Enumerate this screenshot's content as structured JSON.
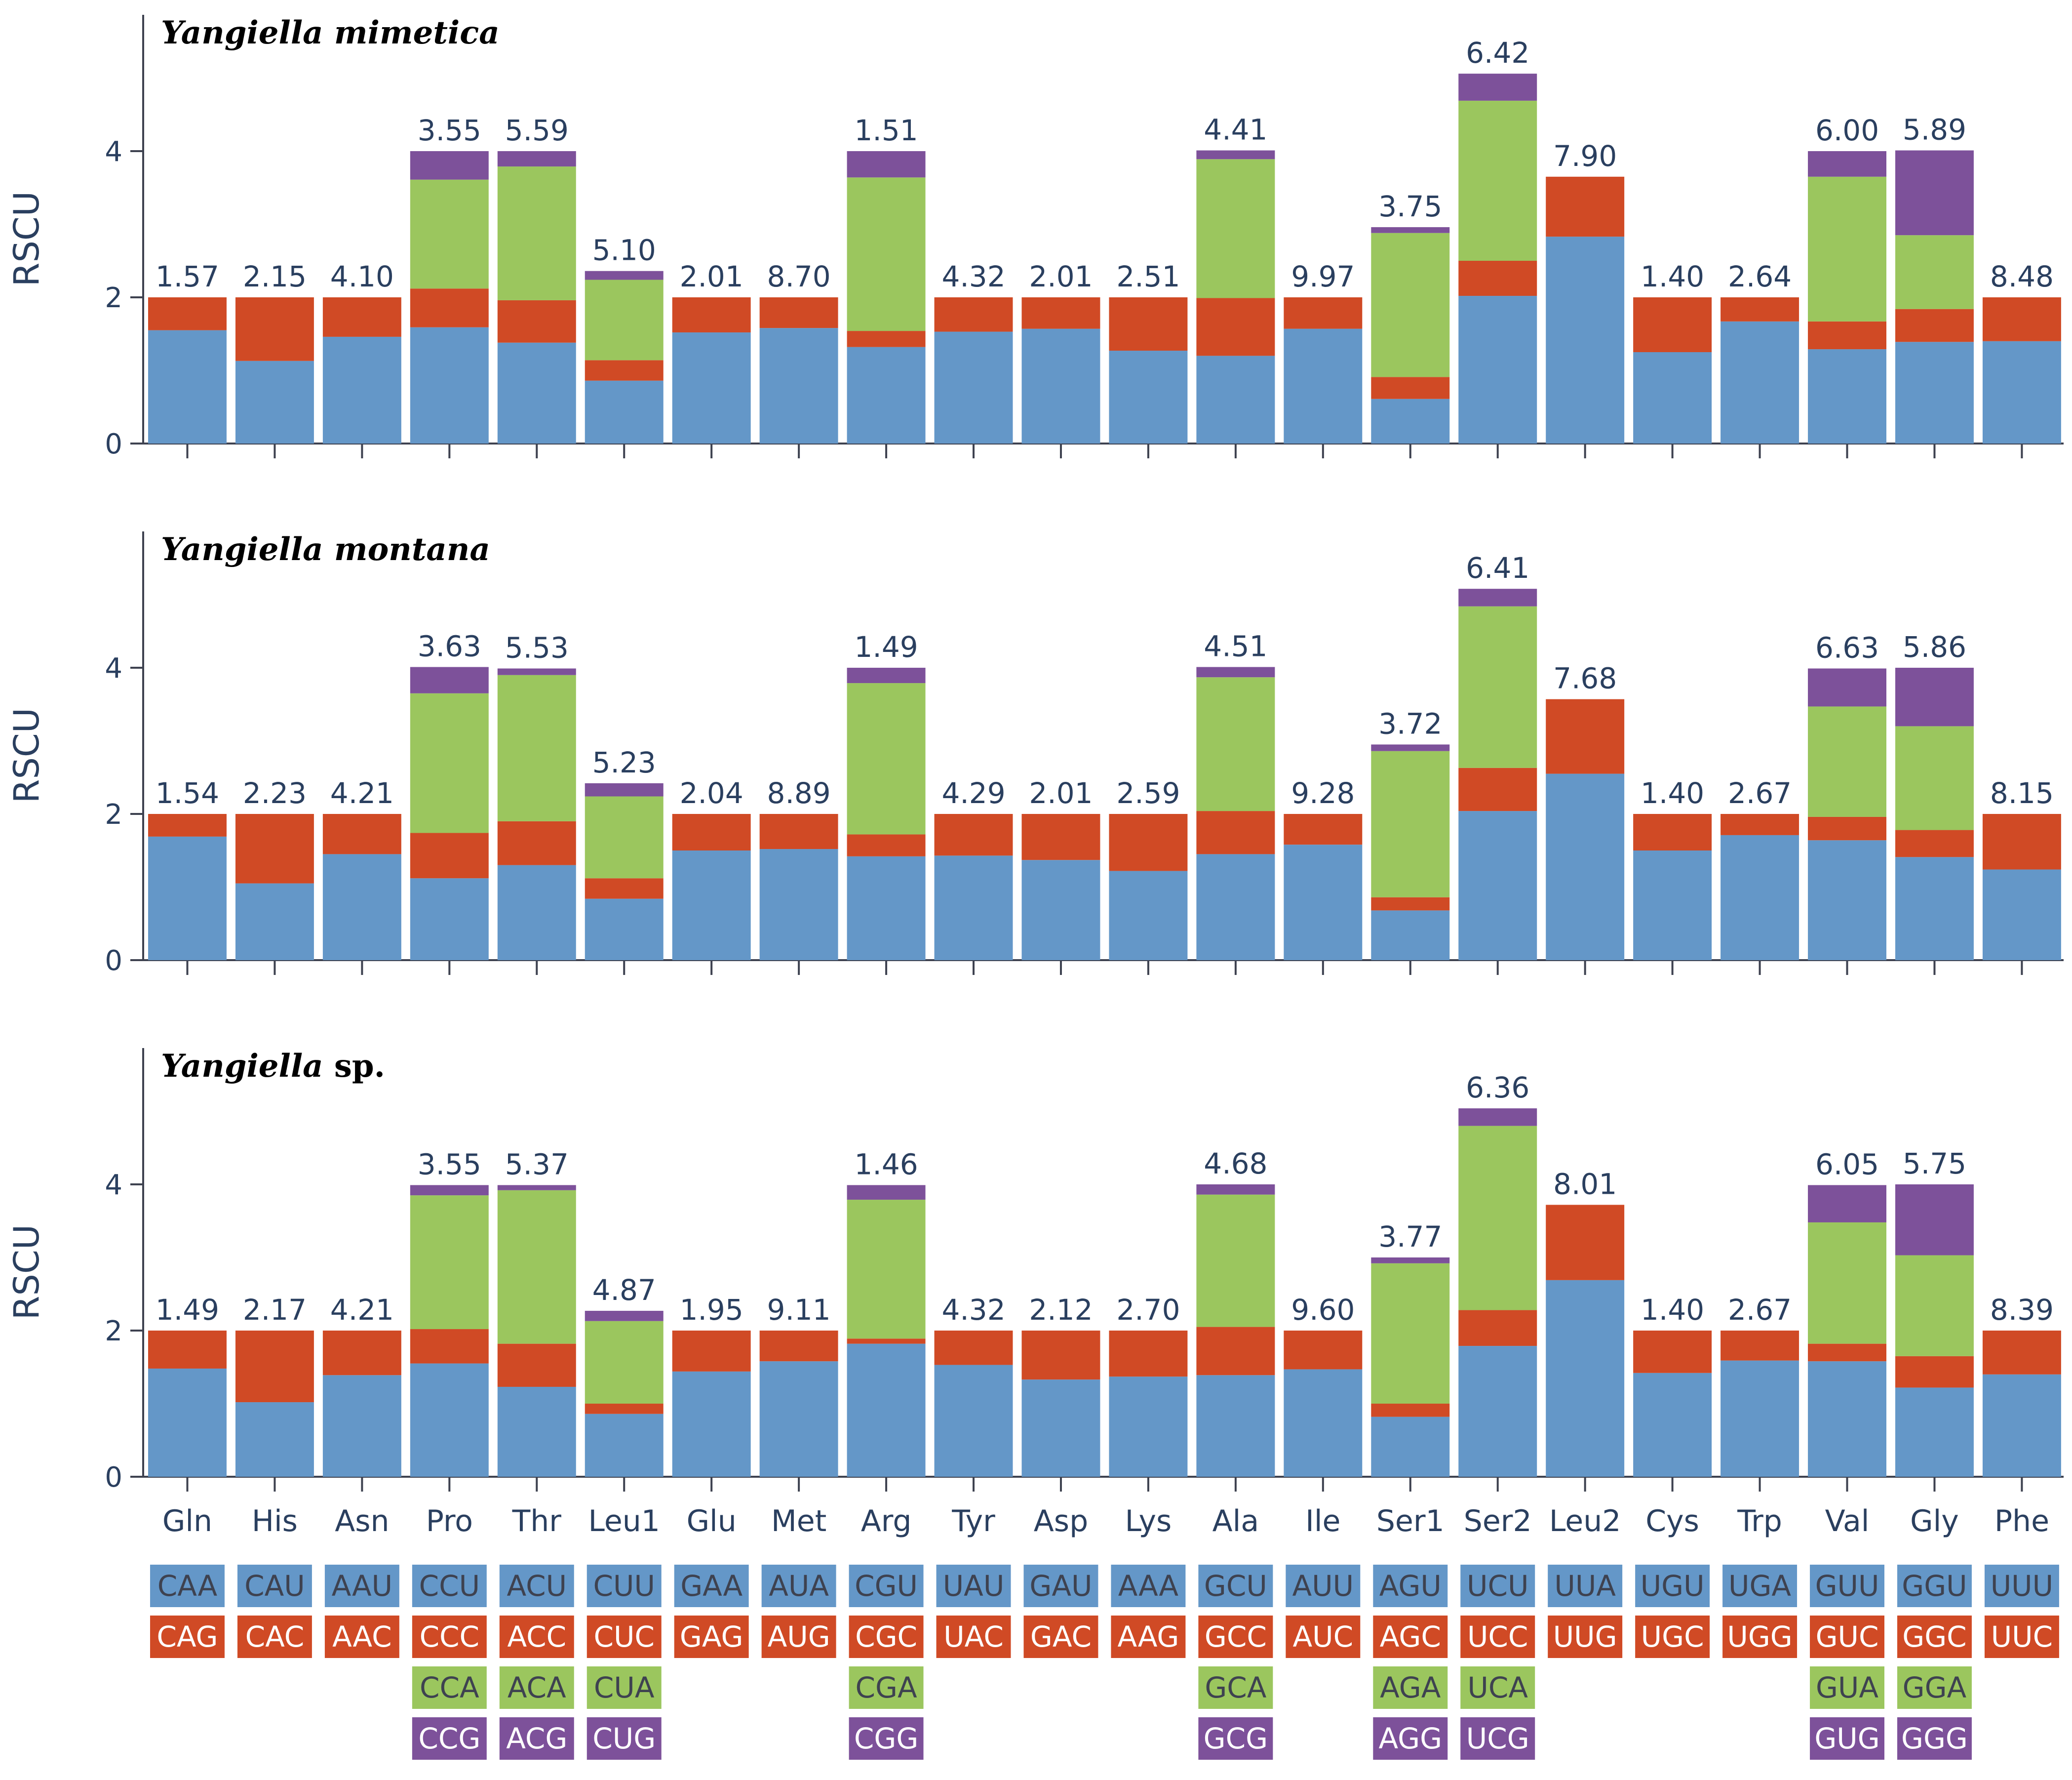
{
  "chart_data": {
    "type": "bar",
    "stacked": true,
    "ylabel": "RSCU",
    "ylim": [
      0,
      5.8
    ],
    "yticks": [
      0,
      2,
      4
    ],
    "colors": [
      "#6497c8",
      "#d04a25",
      "#9bc65e",
      "#7d519a"
    ],
    "codon_text_colors": [
      "#3e4250",
      "#ffffff",
      "#3e4250",
      "#ffffff"
    ],
    "categories": [
      "Gln",
      "His",
      "Asn",
      "Pro",
      "Thr",
      "Leu1",
      "Glu",
      "Met",
      "Arg",
      "Tyr",
      "Asp",
      "Lys",
      "Ala",
      "Ile",
      "Ser1",
      "Ser2",
      "Leu2",
      "Cys",
      "Trp",
      "Val",
      "Gly",
      "Phe"
    ],
    "codons": [
      [
        "CAA",
        "CAG"
      ],
      [
        "CAU",
        "CAC"
      ],
      [
        "AAU",
        "AAC"
      ],
      [
        "CCU",
        "CCC",
        "CCA",
        "CCG"
      ],
      [
        "ACU",
        "ACC",
        "ACA",
        "ACG"
      ],
      [
        "CUU",
        "CUC",
        "CUA",
        "CUG"
      ],
      [
        "GAA",
        "GAG"
      ],
      [
        "AUA",
        "AUG"
      ],
      [
        "CGU",
        "CGC",
        "CGA",
        "CGG"
      ],
      [
        "UAU",
        "UAC"
      ],
      [
        "GAU",
        "GAC"
      ],
      [
        "AAA",
        "AAG"
      ],
      [
        "GCU",
        "GCC",
        "GCA",
        "GCG"
      ],
      [
        "AUU",
        "AUC"
      ],
      [
        "AGU",
        "AGC",
        "AGA",
        "AGG"
      ],
      [
        "UCU",
        "UCC",
        "UCA",
        "UCG"
      ],
      [
        "UUA",
        "UUG"
      ],
      [
        "UGU",
        "UGC"
      ],
      [
        "UGA",
        "UGG"
      ],
      [
        "GUU",
        "GUC",
        "GUA",
        "GUG"
      ],
      [
        "GGU",
        "GGC",
        "GGA",
        "GGG"
      ],
      [
        "UUU",
        "UUC"
      ]
    ],
    "panels": [
      {
        "title": "Yangiella mimetica",
        "title_suffix": "",
        "labels": [
          "1.57",
          "2.15",
          "4.10",
          "3.55",
          "5.59",
          "5.10",
          "2.01",
          "8.70",
          "1.51",
          "4.32",
          "2.01",
          "2.51",
          "4.41",
          "9.97",
          "3.75",
          "6.42",
          "7.90",
          "1.40",
          "2.64",
          "6.00",
          "5.89",
          "8.48"
        ],
        "stacks": [
          [
            1.55,
            0.45
          ],
          [
            1.13,
            0.87
          ],
          [
            1.46,
            0.54
          ],
          [
            1.59,
            0.53,
            1.49,
            0.39
          ],
          [
            1.38,
            0.58,
            1.83,
            0.21
          ],
          [
            0.86,
            0.28,
            1.1,
            0.12
          ],
          [
            1.52,
            0.48
          ],
          [
            1.58,
            0.42
          ],
          [
            1.32,
            0.22,
            2.1,
            0.36
          ],
          [
            1.53,
            0.47
          ],
          [
            1.57,
            0.43
          ],
          [
            1.27,
            0.73
          ],
          [
            1.2,
            0.79,
            1.9,
            0.12
          ],
          [
            1.57,
            0.43
          ],
          [
            0.61,
            0.3,
            1.97,
            0.08
          ],
          [
            2.02,
            0.48,
            2.19,
            0.37
          ],
          [
            2.83,
            0.82
          ],
          [
            1.25,
            0.75
          ],
          [
            1.67,
            0.33
          ],
          [
            1.29,
            0.38,
            1.98,
            0.35
          ],
          [
            1.39,
            0.45,
            1.01,
            1.16
          ],
          [
            1.4,
            0.6
          ]
        ]
      },
      {
        "title": "Yangiella montana",
        "title_suffix": "",
        "labels": [
          "1.54",
          "2.23",
          "4.21",
          "3.63",
          "5.53",
          "5.23",
          "2.04",
          "8.89",
          "1.49",
          "4.29",
          "2.01",
          "2.59",
          "4.51",
          "9.28",
          "3.72",
          "6.41",
          "7.68",
          "1.40",
          "2.67",
          "6.63",
          "5.86",
          "8.15"
        ],
        "stacks": [
          [
            1.69,
            0.31
          ],
          [
            1.05,
            0.95
          ],
          [
            1.45,
            0.55
          ],
          [
            1.12,
            0.62,
            1.91,
            0.36
          ],
          [
            1.3,
            0.6,
            2.0,
            0.09
          ],
          [
            0.84,
            0.28,
            1.12,
            0.18
          ],
          [
            1.5,
            0.5
          ],
          [
            1.52,
            0.48
          ],
          [
            1.42,
            0.3,
            2.07,
            0.21
          ],
          [
            1.43,
            0.57
          ],
          [
            1.37,
            0.63
          ],
          [
            1.22,
            0.78
          ],
          [
            1.45,
            0.59,
            1.83,
            0.14
          ],
          [
            1.58,
            0.42
          ],
          [
            0.68,
            0.18,
            2.0,
            0.09
          ],
          [
            2.04,
            0.59,
            2.21,
            0.24
          ],
          [
            2.55,
            1.02
          ],
          [
            1.5,
            0.5
          ],
          [
            1.71,
            0.29
          ],
          [
            1.64,
            0.32,
            1.51,
            0.52
          ],
          [
            1.41,
            0.37,
            1.42,
            0.8
          ],
          [
            1.24,
            0.76
          ]
        ]
      },
      {
        "title": "Yangiella",
        "title_suffix": " sp.",
        "labels": [
          "1.49",
          "2.17",
          "4.21",
          "3.55",
          "5.37",
          "4.87",
          "1.95",
          "9.11",
          "1.46",
          "4.32",
          "2.12",
          "2.70",
          "4.68",
          "9.60",
          "3.77",
          "6.36",
          "8.01",
          "1.40",
          "2.67",
          "6.05",
          "5.75",
          "8.39"
        ],
        "stacks": [
          [
            1.48,
            0.52
          ],
          [
            1.02,
            0.98
          ],
          [
            1.39,
            0.61
          ],
          [
            1.55,
            0.47,
            1.83,
            0.14
          ],
          [
            1.23,
            0.59,
            2.1,
            0.07
          ],
          [
            0.86,
            0.14,
            1.13,
            0.14
          ],
          [
            1.44,
            0.56
          ],
          [
            1.58,
            0.42
          ],
          [
            1.82,
            0.07,
            1.9,
            0.2
          ],
          [
            1.53,
            0.47
          ],
          [
            1.33,
            0.67
          ],
          [
            1.37,
            0.63
          ],
          [
            1.39,
            0.66,
            1.81,
            0.14
          ],
          [
            1.47,
            0.53
          ],
          [
            0.82,
            0.18,
            1.92,
            0.08
          ],
          [
            1.79,
            0.49,
            2.52,
            0.24
          ],
          [
            2.69,
            1.03
          ],
          [
            1.42,
            0.58
          ],
          [
            1.59,
            0.41
          ],
          [
            1.58,
            0.24,
            1.66,
            0.51
          ],
          [
            1.22,
            0.43,
            1.38,
            0.97
          ],
          [
            1.4,
            0.6
          ]
        ]
      }
    ]
  }
}
